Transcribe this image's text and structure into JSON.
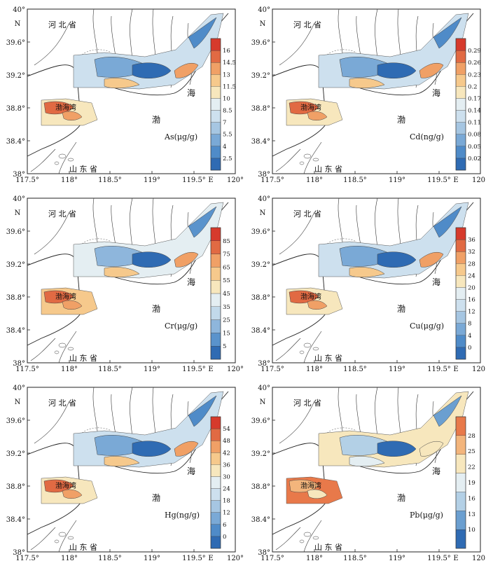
{
  "axes": {
    "x_ticks": [
      "117.5°",
      "118°",
      "118.5°",
      "119°",
      "119.5°",
      "120°"
    ],
    "y_ticks": [
      "40°",
      "39.6°",
      "39.2°",
      "38.8°",
      "38.4°",
      "38°"
    ],
    "x_unit": "E",
    "y_unit": "N"
  },
  "place_labels": {
    "hebei": "河 北 省",
    "shandong": "山 东 省",
    "bohai_bay": "渤海湾",
    "sea_hai": "海",
    "sea_bo": "渤"
  },
  "panels": [
    {
      "id": "as",
      "label": "As(μg/g)",
      "legend_ticks": [
        "16",
        "14.5",
        "13",
        "11.5",
        "10",
        "8.5",
        "7",
        "5.5",
        "4",
        "2.5"
      ],
      "colors": [
        "#2f6bb3",
        "#4f8bc8",
        "#7aa9d6",
        "#a6c6e2",
        "#cde0ee",
        "#e4eef2",
        "#f7e7bd",
        "#f6c98c",
        "#f0a066",
        "#e16a43",
        "#d63a2c"
      ]
    },
    {
      "id": "cd",
      "label": "Cd(ng/g)",
      "legend_ticks": [
        "0.29",
        "0.26",
        "0.23",
        "0.2",
        "0.17",
        "0.14",
        "0.11",
        "0.08",
        "0.05",
        "0.02"
      ],
      "colors": [
        "#2f6bb3",
        "#4f8bc8",
        "#7aa9d6",
        "#a6c6e2",
        "#cde0ee",
        "#e4eef2",
        "#f7e7bd",
        "#f6c98c",
        "#f0a066",
        "#e16a43",
        "#d63a2c"
      ]
    },
    {
      "id": "cr",
      "label": "Cr(μg/g)",
      "legend_ticks": [
        "85",
        "75",
        "65",
        "55",
        "45",
        "35",
        "25",
        "15",
        "5"
      ],
      "colors": [
        "#2f6bb3",
        "#5a93cc",
        "#8eb6dc",
        "#c2d9ea",
        "#e4eef2",
        "#f7e7bd",
        "#f6c98c",
        "#f0a066",
        "#e16a43",
        "#d63a2c"
      ]
    },
    {
      "id": "cu",
      "label": "Cu(μg/g)",
      "legend_ticks": [
        "36",
        "32",
        "28",
        "24",
        "20",
        "16",
        "12",
        "8",
        "4",
        "0"
      ],
      "colors": [
        "#2f6bb3",
        "#4f8bc8",
        "#7aa9d6",
        "#a6c6e2",
        "#cde0ee",
        "#e4eef2",
        "#f7e7bd",
        "#f6c98c",
        "#f0a066",
        "#e16a43",
        "#d63a2c"
      ]
    },
    {
      "id": "hg",
      "label": "Hg(ng/g)",
      "legend_ticks": [
        "54",
        "48",
        "42",
        "36",
        "30",
        "24",
        "18",
        "12",
        "6",
        "0"
      ],
      "colors": [
        "#2f6bb3",
        "#4f8bc8",
        "#7aa9d6",
        "#a6c6e2",
        "#cde0ee",
        "#e4eef2",
        "#f7e7bd",
        "#f6c98c",
        "#f0a066",
        "#e16a43",
        "#d63a2c"
      ]
    },
    {
      "id": "pb",
      "label": "Pb(μg/g)",
      "legend_ticks": [
        "28",
        "25",
        "22",
        "19",
        "16",
        "13",
        "10"
      ],
      "colors": [
        "#2f6bb3",
        "#6b9fd0",
        "#b3d0e6",
        "#e4eef2",
        "#f7e7bd",
        "#f3b57c",
        "#e8794a"
      ]
    }
  ]
}
